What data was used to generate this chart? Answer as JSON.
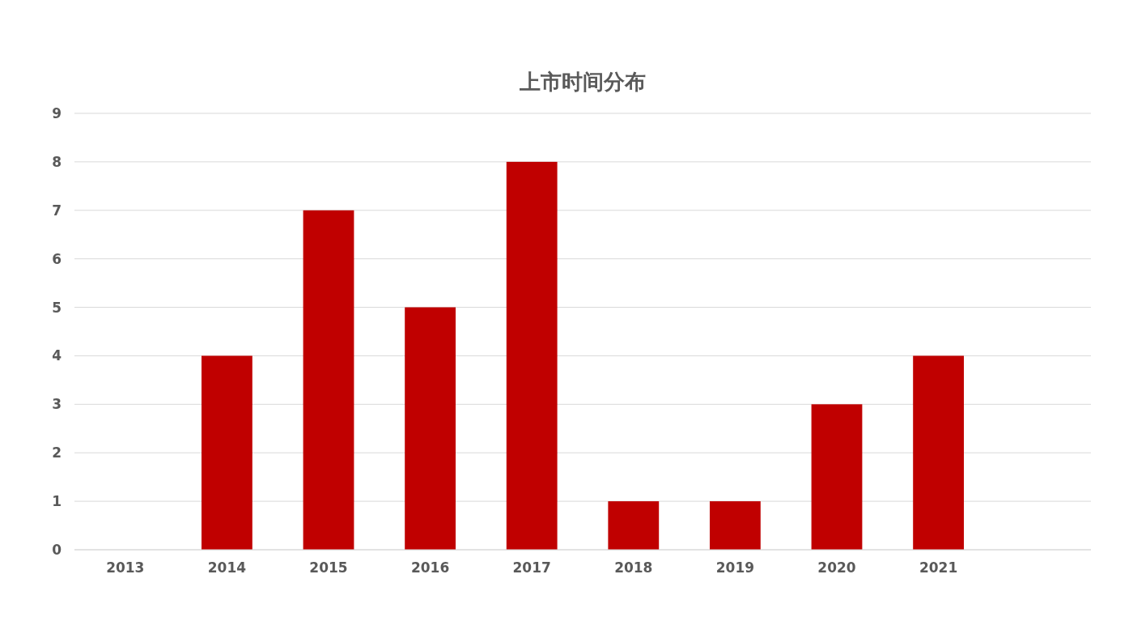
{
  "chart_data": {
    "type": "bar",
    "title": "上市时间分布",
    "categories": [
      "2013",
      "2014",
      "2015",
      "2016",
      "2017",
      "2018",
      "2019",
      "2020",
      "2021",
      null
    ],
    "values": [
      0,
      4,
      7,
      5,
      8,
      1,
      1,
      3,
      4,
      null
    ],
    "color": "#c00000",
    "ylim": [
      0,
      9
    ],
    "yticks": [
      0,
      1,
      2,
      3,
      4,
      5,
      6,
      7,
      8,
      9
    ],
    "grid": "y"
  }
}
